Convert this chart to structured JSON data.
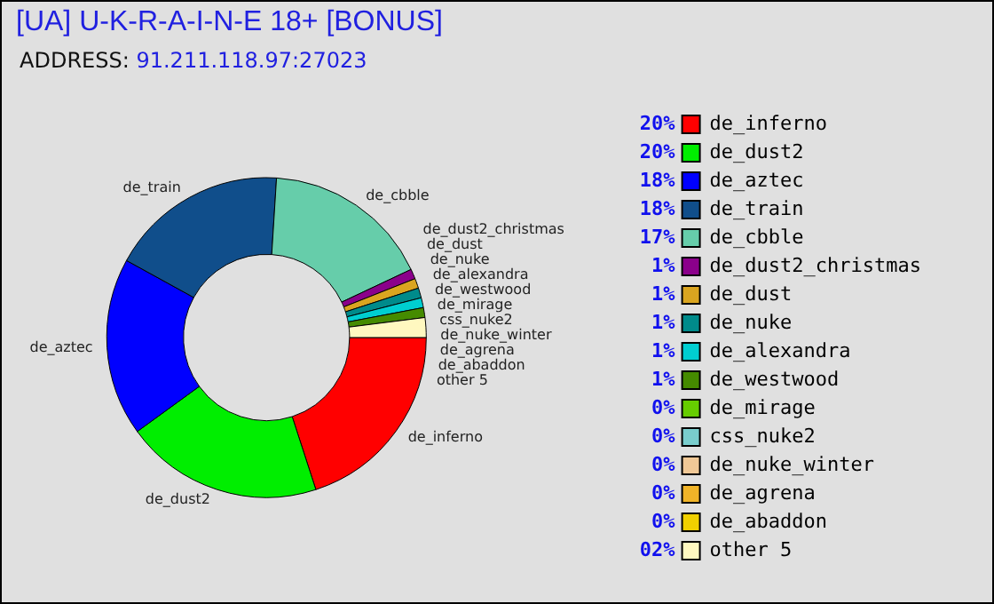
{
  "chart_data": {
    "type": "donut",
    "title": "[UA] U-K-R-A-I-N-E 18+ [BONUS]",
    "subtitle": "ADDRESS: 91.211.118.97:27023",
    "categories": [
      "de_inferno",
      "de_dust2",
      "de_aztec",
      "de_train",
      "de_cbble",
      "de_dust2_christmas",
      "de_dust",
      "de_nuke",
      "de_alexandra",
      "de_westwood",
      "de_mirage",
      "css_nuke2",
      "de_nuke_winter",
      "de_agrena",
      "de_abaddon",
      "other 5"
    ],
    "values": [
      20,
      20,
      18,
      18,
      17,
      1,
      1,
      1,
      1,
      1,
      0,
      0,
      0,
      0,
      0,
      2
    ],
    "value_labels": [
      "20%",
      "20%",
      "18%",
      "18%",
      "17%",
      "1%",
      "1%",
      "1%",
      "1%",
      "1%",
      "0%",
      "0%",
      "0%",
      "0%",
      "0%",
      "02%"
    ],
    "colors": [
      "#ff0000",
      "#00ee00",
      "#0000ff",
      "#104e8b",
      "#66cdaa",
      "#8b008b",
      "#daa520",
      "#008b8b",
      "#00ced1",
      "#458b00",
      "#66cd00",
      "#79cdcd",
      "#f0c896",
      "#f0b428",
      "#f0d000",
      "#fff8c0"
    ],
    "legend": "right"
  }
}
